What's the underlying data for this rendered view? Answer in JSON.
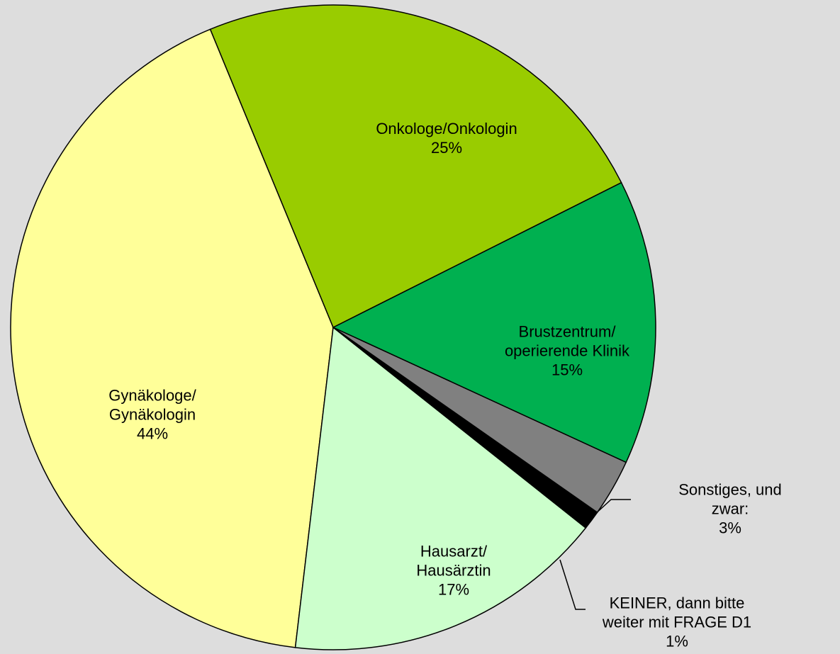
{
  "chart_data": {
    "type": "pie",
    "categories": [
      "Onkologe/Onkologin",
      "Brustzentrum/\noperierende Klinik",
      "Sonstiges, und zwar:",
      "KEINER, dann bitte\nweiter mit FRAGE D1",
      "Hausarzt/\nHausärztin",
      "Gynäkologe/\nGynäkologin"
    ],
    "values": [
      25,
      15,
      3,
      1,
      17,
      44
    ],
    "value_labels": [
      "25%",
      "15%",
      "3%",
      "1%",
      "17%",
      "44%"
    ],
    "colors": [
      "#99cc00",
      "#00b050",
      "#808080",
      "#000000",
      "#ccffcc",
      "#ffff99"
    ]
  }
}
